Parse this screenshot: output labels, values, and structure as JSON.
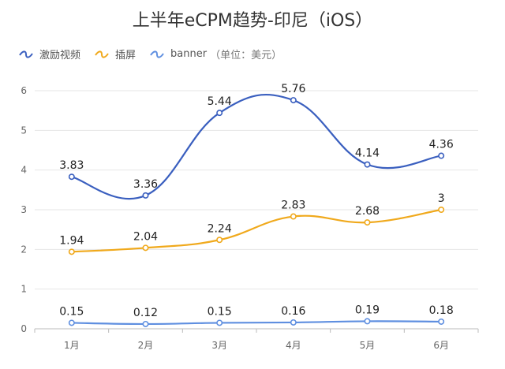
{
  "chart_data": {
    "type": "line",
    "title": "上半年eCPM趋势-印尼（iOS）",
    "categories": [
      "1月",
      "2月",
      "3月",
      "4月",
      "5月",
      "6月"
    ],
    "series": [
      {
        "name": "激励视频",
        "color": "#3a5fbf",
        "values": [
          3.83,
          3.36,
          5.44,
          5.76,
          4.14,
          4.36
        ]
      },
      {
        "name": "插屏",
        "color": "#f0a91c",
        "values": [
          1.94,
          2.04,
          2.24,
          2.83,
          2.68,
          3
        ]
      },
      {
        "name": "banner",
        "color": "#5f8fe0",
        "values": [
          0.15,
          0.12,
          0.15,
          0.16,
          0.19,
          0.18
        ]
      }
    ],
    "unit_note": "（单位：美元）",
    "yticks": [
      0,
      1,
      2,
      3,
      4,
      5,
      6
    ],
    "ylim": [
      0,
      6
    ],
    "grid": true,
    "legend_position": "top-left",
    "smooth": true
  }
}
